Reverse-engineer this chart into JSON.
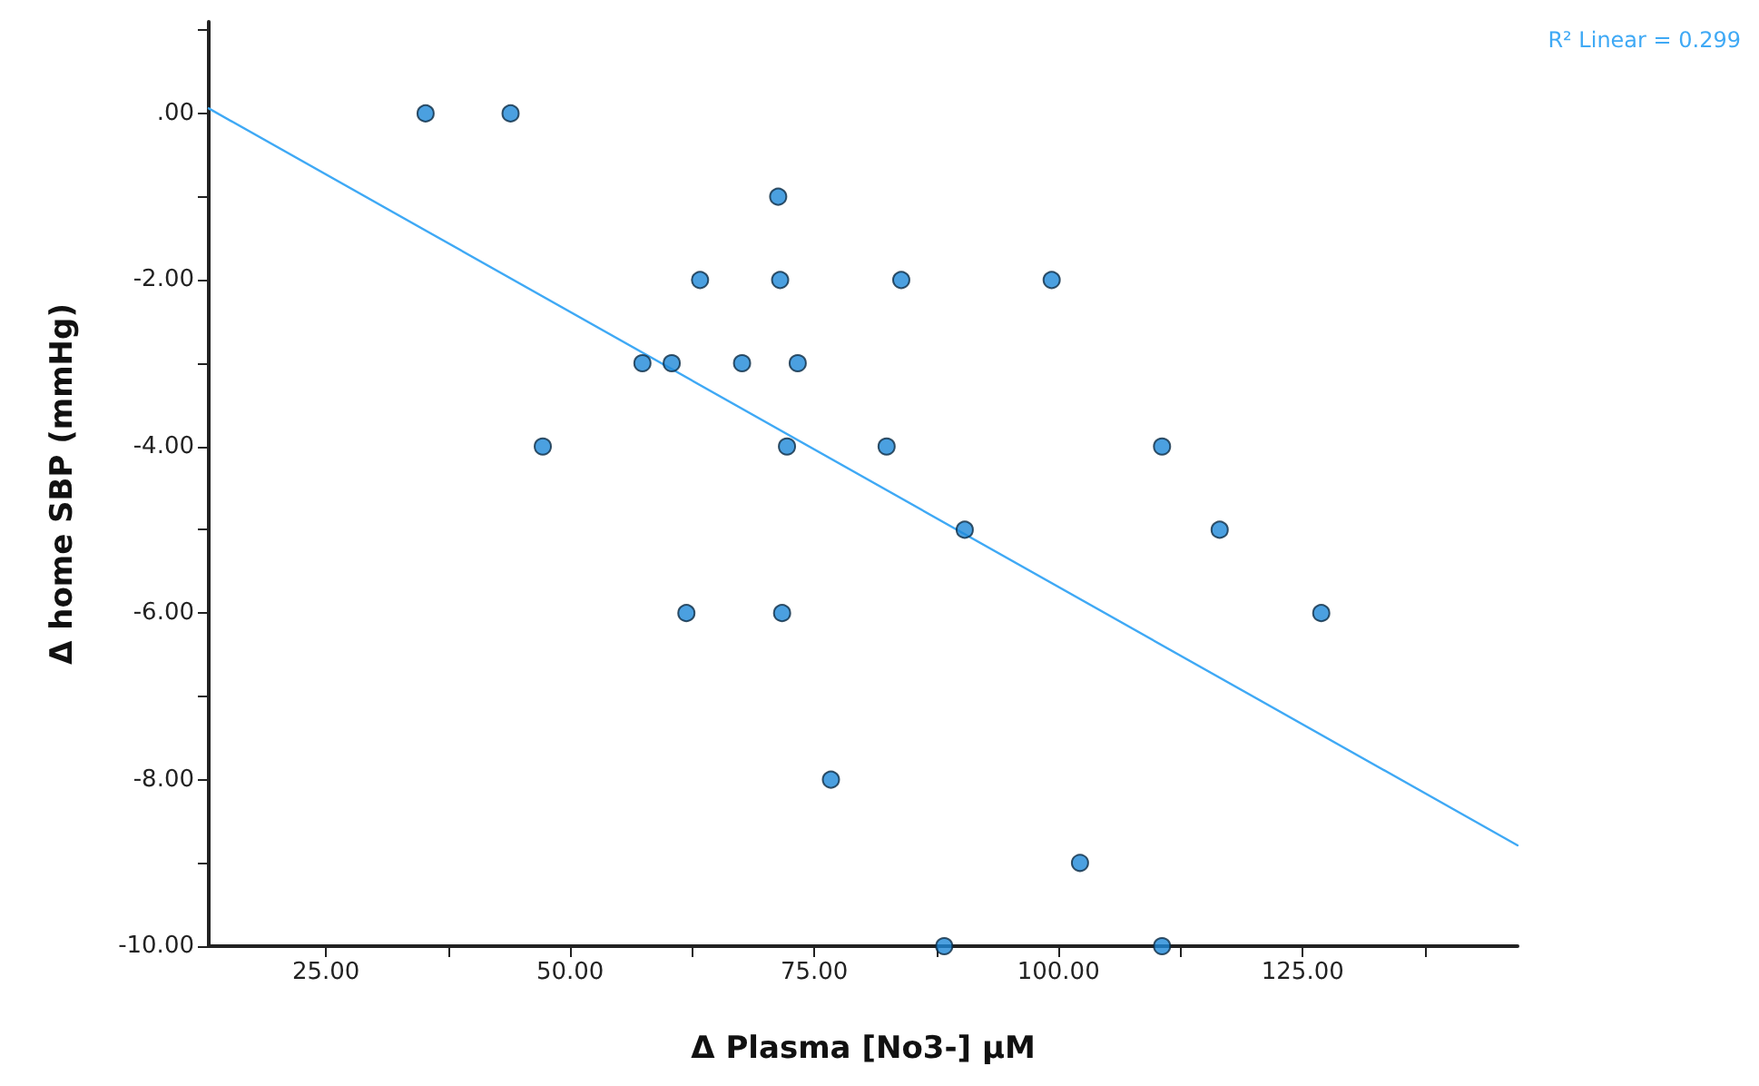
{
  "chart_data": {
    "type": "scatter",
    "xlabel": "Δ Plasma [No3-] μM",
    "ylabel": "Δ home SBP (mmHg)",
    "annotations": [
      "R² Linear = 0.299"
    ],
    "xlim": [
      13,
      147
    ],
    "ylim": [
      -10,
      1.1
    ],
    "xticks": [
      {
        "value": 25,
        "label": "25.00"
      },
      {
        "value": 37.5,
        "label": null
      },
      {
        "value": 50,
        "label": "50.00"
      },
      {
        "value": 62.5,
        "label": null
      },
      {
        "value": 75,
        "label": "75.00"
      },
      {
        "value": 87.5,
        "label": null
      },
      {
        "value": 100,
        "label": "100.00"
      },
      {
        "value": 112.5,
        "label": null
      },
      {
        "value": 125,
        "label": "125.00"
      },
      {
        "value": 137.5,
        "label": null
      }
    ],
    "yticks": [
      {
        "value": -10,
        "label": "-10.00"
      },
      {
        "value": -9,
        "label": null
      },
      {
        "value": -8,
        "label": "-8.00"
      },
      {
        "value": -7,
        "label": null
      },
      {
        "value": -6,
        "label": "-6.00"
      },
      {
        "value": -5,
        "label": null
      },
      {
        "value": -4,
        "label": "-4.00"
      },
      {
        "value": -3,
        "label": null
      },
      {
        "value": -2,
        "label": "-2.00"
      },
      {
        "value": -1,
        "label": null
      },
      {
        "value": 0,
        "label": ".00"
      },
      {
        "value": 1,
        "label": null
      }
    ],
    "grid": false,
    "marker": "circle",
    "series": [
      {
        "color": "#1e88d8",
        "x": [
          35.2,
          43.9,
          47.2,
          57.4,
          60.4,
          63.3,
          61.9,
          67.6,
          71.3,
          71.5,
          72.2,
          71.7,
          73.3,
          76.7,
          82.4,
          83.9,
          88.3,
          90.4,
          99.3,
          102.2,
          110.6,
          110.6,
          116.5,
          126.9
        ],
        "values": [
          0,
          0,
          -4,
          -3,
          -3,
          -2,
          -6,
          -3,
          -1,
          -2,
          -4,
          -6,
          -3,
          -8,
          -4,
          -2,
          -10,
          -5,
          -2,
          -9,
          -4,
          -10,
          -5,
          -6
        ]
      },
      {
        "type": "line",
        "color": "#3fa9f5",
        "x": [
          13,
          147
        ],
        "values": [
          0.06,
          -8.79
        ],
        "marker": "none",
        "line_style": "solid"
      }
    ]
  }
}
